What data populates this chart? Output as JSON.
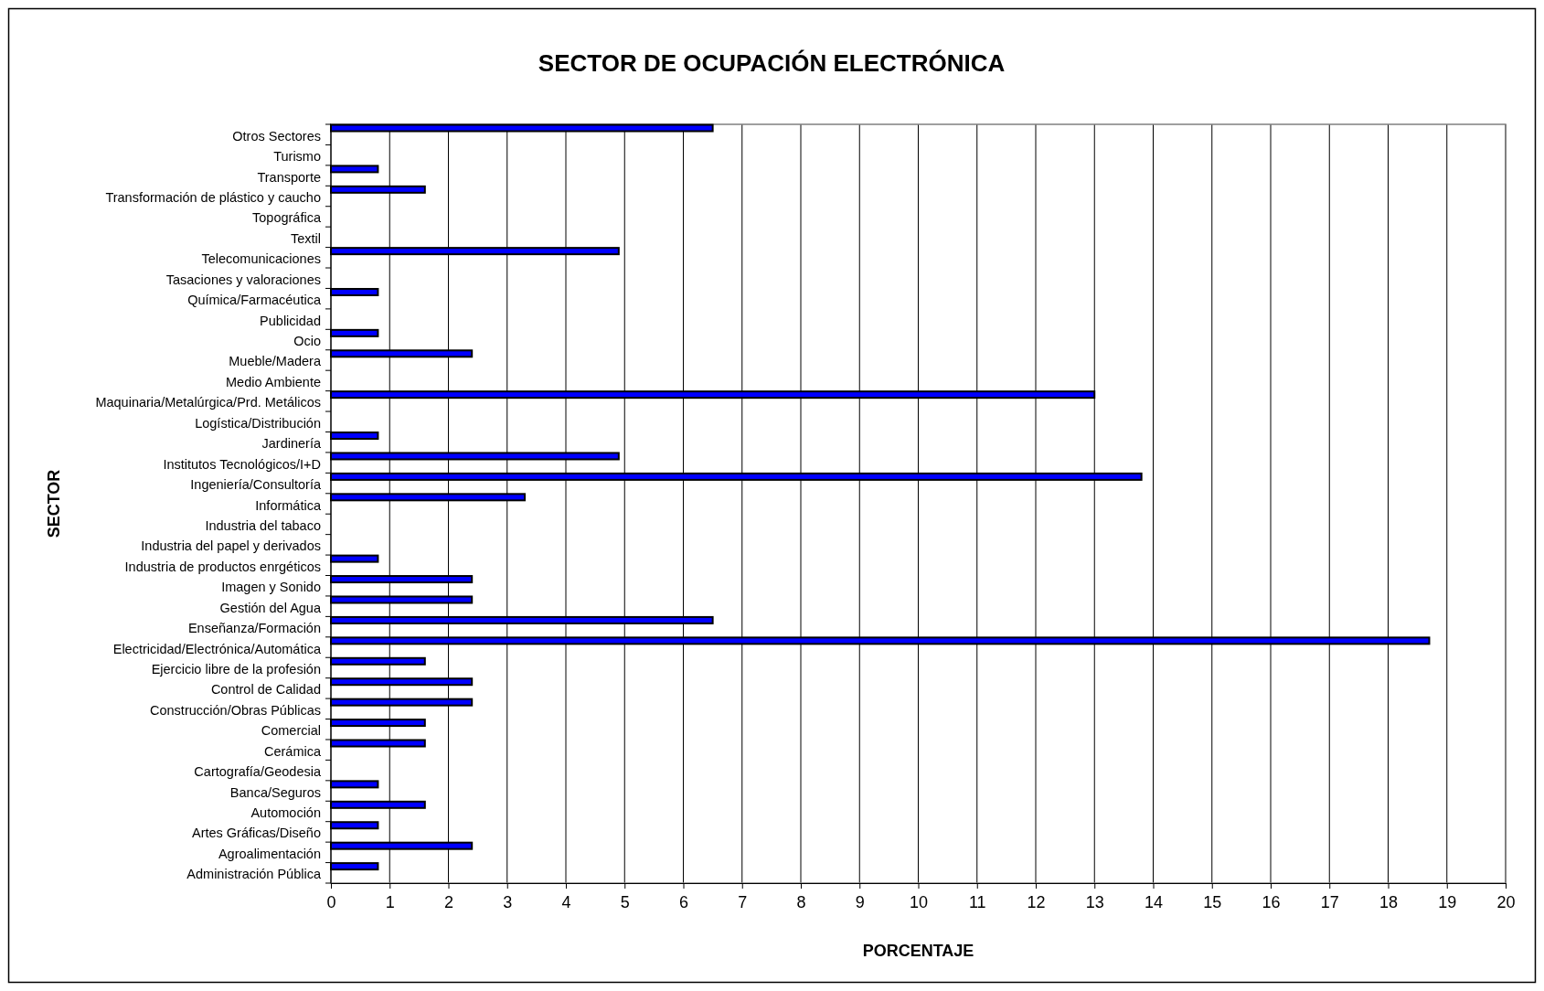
{
  "chart_data": {
    "type": "bar",
    "orientation": "horizontal",
    "title": "SECTOR DE OCUPACIÓN ELECTRÓNICA",
    "xlabel": "PORCENTAJE",
    "ylabel": "SECTOR",
    "categories": [
      "Otros Sectores",
      "Turismo",
      "Transporte",
      "Transformación de plástico y caucho",
      "Topográfica",
      "Textil",
      "Telecomunicaciones",
      "Tasaciones y valoraciones",
      "Química/Farmacéutica",
      "Publicidad",
      "Ocio",
      "Mueble/Madera",
      "Medio Ambiente",
      "Maquinaria/Metalúrgica/Prd. Metálicos",
      "Logística/Distribución",
      "Jardinería",
      "Institutos Tecnológicos/I+D",
      "Ingeniería/Consultoría",
      "Informática",
      "Industria del tabaco",
      "Industria del papel y derivados",
      "Industria de productos enrgéticos",
      "Imagen y Sonido",
      "Gestión del Agua",
      "Enseñanza/Formación",
      "Electricidad/Electrónica/Automática",
      "Ejercicio libre de la profesión",
      "Control de Calidad",
      "Construcción/Obras Públicas",
      "Comercial",
      "Cerámica",
      "Cartografía/Geodesia",
      "Banca/Seguros",
      "Automoción",
      "Artes Gráficas/Diseño",
      "Agroalimentación",
      "Administración Pública"
    ],
    "values": [
      6.5,
      0,
      0.8,
      1.6,
      0,
      0,
      4.9,
      0,
      0.8,
      0,
      0.8,
      2.4,
      0,
      13.0,
      0,
      0.8,
      4.9,
      13.8,
      3.3,
      0,
      0,
      0.8,
      2.4,
      2.4,
      6.5,
      18.7,
      1.6,
      2.4,
      2.4,
      1.6,
      1.6,
      0,
      0.8,
      1.6,
      0.8,
      2.4,
      0.8
    ],
    "color": "#0000ff",
    "xlim": [
      0,
      20
    ],
    "xticks": [
      0,
      1,
      2,
      3,
      4,
      5,
      6,
      7,
      8,
      9,
      10,
      11,
      12,
      13,
      14,
      15,
      16,
      17,
      18,
      19,
      20
    ],
    "grid": "x"
  }
}
